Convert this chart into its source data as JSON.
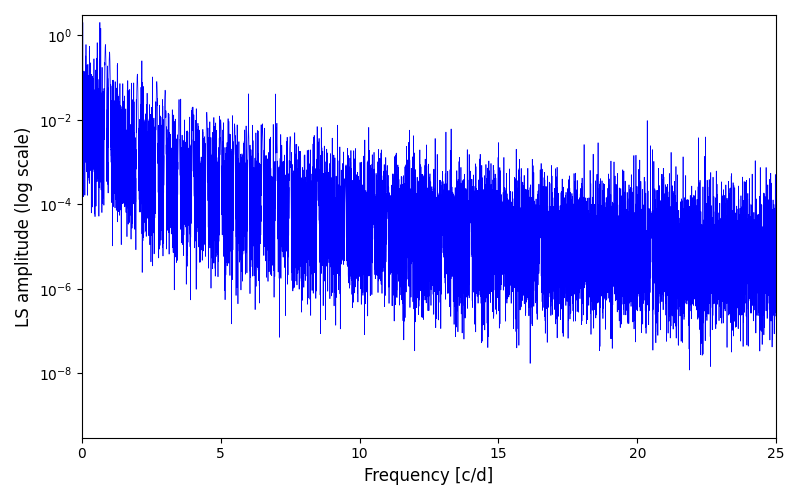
{
  "xlabel": "Frequency [c/d]",
  "ylabel": "LS amplitude (log scale)",
  "xlim": [
    0,
    25
  ],
  "ylim": [
    3e-10,
    3.0
  ],
  "yticks": [
    1e-08,
    1e-06,
    0.0001,
    0.01,
    1.0
  ],
  "xticks": [
    0,
    5,
    10,
    15,
    20,
    25
  ],
  "line_color": "#0000ff",
  "line_width": 0.5,
  "background_color": "#ffffff",
  "freq_max": 25.0,
  "n_points": 15000,
  "seed": 12345
}
